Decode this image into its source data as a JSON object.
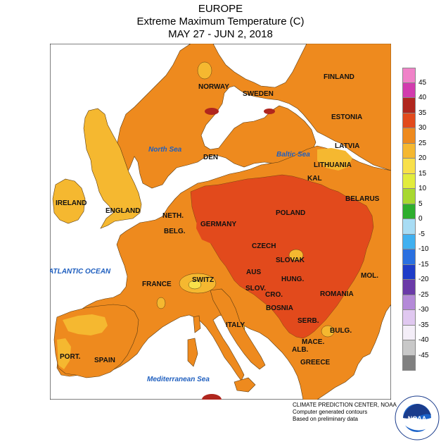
{
  "header": {
    "region": "EUROPE",
    "title": "Extreme Maximum Temperature (C)",
    "dates": "MAY 27 - JUN 2, 2018"
  },
  "map": {
    "countries": [
      "NORWAY",
      "SWEDEN",
      "FINLAND",
      "ESTONIA",
      "LATVIA",
      "LITHUANIA",
      "KAL",
      "DEN",
      "BELARUS",
      "IRELAND",
      "ENGLAND",
      "NETH.",
      "BELG.",
      "GERMANY",
      "POLAND",
      "CZECH",
      "SLOVAK",
      "FRANCE",
      "SWITZ",
      "AUS",
      "HUNG.",
      "SLOV.",
      "CRO.",
      "MOL.",
      "ROMANIA",
      "BOSNIA",
      "SERB.",
      "BULG.",
      "ITALY",
      "MACE.",
      "ALB.",
      "GREECE",
      "PORT.",
      "SPAIN"
    ],
    "seas": [
      "North Sea",
      "Baltic Sea",
      "ATLANTIC OCEAN",
      "Mediterranean Sea"
    ],
    "colors": {
      "sea": "#ffffff",
      "c20_25": "#f5b830",
      "c25_30": "#ee8a1e",
      "c30_35": "#e24a1c",
      "c35_40": "#b0261e",
      "c15_20": "#f8e04a"
    }
  },
  "legend": {
    "values": [
      "45",
      "40",
      "35",
      "30",
      "25",
      "20",
      "15",
      "10",
      "5",
      "0",
      "-5",
      "-10",
      "-15",
      "-20",
      "-25",
      "-30",
      "-35",
      "-40",
      "-45"
    ],
    "colors": [
      "#f083c8",
      "#d23cae",
      "#b0261e",
      "#e24a1c",
      "#ee8a1e",
      "#f5b830",
      "#f8e04a",
      "#e2ec3c",
      "#a8d830",
      "#2eae2e",
      "#a8dcf4",
      "#40b0f0",
      "#2a70e0",
      "#1e3cc8",
      "#6a3aa8",
      "#b48ad8",
      "#e0c8f0",
      "#f4eef8",
      "#c8c8c8",
      "#808080"
    ]
  },
  "credits": {
    "line1": "CLIMATE PREDICTION CENTER, NOAA",
    "line2": "Computer generated contours",
    "line3": "Based on preliminary data",
    "logo_text": "NOAA",
    "logo_ring": "NATIONAL OCEANIC AND ATMOSPHERIC ADMINISTRATION · U.S. DEPARTMENT OF COMMERCE"
  }
}
